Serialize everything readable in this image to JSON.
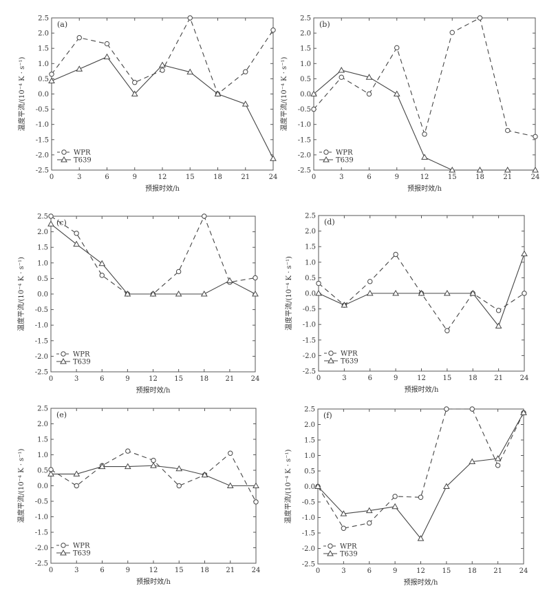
{
  "figure": {
    "background": "#ffffff",
    "line_color": "#444444"
  },
  "chart_data": [
    {
      "type": "line",
      "panel": "(a)",
      "xlabel": "预报时效/h",
      "ylabel": "温度平流/(10⁻⁴ K · s⁻¹)",
      "x": [
        0,
        3,
        6,
        9,
        12,
        15,
        18,
        21,
        24
      ],
      "xticks": [
        0,
        3,
        6,
        9,
        12,
        15,
        18,
        21,
        24
      ],
      "yticks": [
        2.5,
        2.0,
        1.5,
        1.0,
        0.5,
        0.0,
        -0.5,
        -1.0,
        -1.5,
        -2.0,
        -2.5
      ],
      "ytick_labels": [
        "2.5",
        "2.0",
        "1.5",
        "1.0",
        "0.5",
        "0.0",
        "-0.5",
        "-1.0",
        "-1.5",
        "-2.0",
        "-2.5"
      ],
      "xlim": [
        0,
        24
      ],
      "ylim": [
        -2.5,
        2.5
      ],
      "series": [
        {
          "name": "WPR",
          "marker": "circle",
          "dash": true,
          "values": [
            0.65,
            1.85,
            1.65,
            0.38,
            0.78,
            2.5,
            0.0,
            0.73,
            2.1
          ]
        },
        {
          "name": "T639",
          "marker": "triangle",
          "dash": false,
          "values": [
            0.43,
            0.82,
            1.22,
            0.0,
            0.95,
            0.72,
            0.0,
            -0.33,
            -2.12
          ]
        }
      ]
    },
    {
      "type": "line",
      "panel": "(b)",
      "xlabel": "预报时效/h",
      "ylabel": "温度平流/(10⁻⁴ K · s⁻¹)",
      "x": [
        0,
        3,
        6,
        9,
        12,
        15,
        18,
        21,
        24
      ],
      "xticks": [
        0,
        3,
        6,
        9,
        12,
        15,
        18,
        21,
        24
      ],
      "yticks": [
        2.5,
        2.0,
        1.5,
        1.0,
        0.5,
        0.0,
        -0.5,
        -1.0,
        -1.5,
        -2.0,
        -2.5
      ],
      "ytick_labels": [
        "2.5",
        "2.0",
        "1.5",
        "1.0",
        "0.5",
        "0.0",
        "-0.5",
        "-1.0",
        "-1.5",
        "-2.0",
        "-2.5"
      ],
      "xlim": [
        0,
        24
      ],
      "ylim": [
        -2.5,
        2.5
      ],
      "series": [
        {
          "name": "WPR",
          "marker": "circle",
          "dash": true,
          "values": [
            -0.5,
            0.55,
            0.0,
            1.52,
            -1.32,
            2.02,
            2.5,
            -1.2,
            -1.4
          ]
        },
        {
          "name": "T639",
          "marker": "triangle",
          "dash": false,
          "values": [
            0.0,
            0.78,
            0.55,
            0.0,
            -2.08,
            -2.5,
            -2.5,
            -2.5,
            -2.5
          ]
        }
      ]
    },
    {
      "type": "line",
      "panel": "(c)",
      "xlabel": "预报时效/h",
      "ylabel": "温度平流/(10⁻⁴ K · s⁻¹)",
      "x": [
        0,
        3,
        6,
        9,
        12,
        15,
        18,
        21,
        24
      ],
      "xticks": [
        0,
        3,
        6,
        9,
        12,
        15,
        18,
        21,
        24
      ],
      "yticks": [
        2.5,
        2.0,
        1.5,
        1.0,
        0.5,
        0.0,
        -0.5,
        -1.0,
        -1.5,
        -2.0,
        -2.5
      ],
      "ytick_labels": [
        "2.5",
        "2.0",
        "1.5",
        "1.0",
        "0.5",
        "0.0",
        "-0.5",
        "-1.0",
        "-1.5",
        "-2.0",
        "-2.5"
      ],
      "xlim": [
        0,
        24
      ],
      "ylim": [
        -2.5,
        2.5
      ],
      "series": [
        {
          "name": "WPR",
          "marker": "circle",
          "dash": true,
          "values": [
            2.5,
            1.95,
            0.6,
            0.0,
            0.0,
            0.72,
            2.5,
            0.38,
            0.52
          ]
        },
        {
          "name": "T639",
          "marker": "triangle",
          "dash": false,
          "values": [
            2.25,
            1.6,
            0.98,
            0.0,
            0.0,
            0.0,
            0.0,
            0.43,
            0.0
          ]
        }
      ]
    },
    {
      "type": "line",
      "panel": "(d)",
      "xlabel": "预报时效/h",
      "ylabel": "温度平流/(10⁻⁴ K · s⁻¹)",
      "x": [
        0,
        3,
        6,
        9,
        12,
        15,
        18,
        21,
        24
      ],
      "xticks": [
        0,
        3,
        6,
        9,
        12,
        15,
        18,
        21,
        24
      ],
      "yticks": [
        2.5,
        2.0,
        1.5,
        1.0,
        0.5,
        0.0,
        -0.5,
        -1.0,
        -1.5,
        -2.0,
        -2.5
      ],
      "ytick_labels": [
        "2.5",
        "2.0",
        "1.5",
        "1.0",
        "0.5",
        "0.0",
        "-0.5",
        "-1.0",
        "-1.5",
        "-2.0",
        "-2.5"
      ],
      "xlim": [
        0,
        24
      ],
      "ylim": [
        -2.5,
        2.5
      ],
      "series": [
        {
          "name": "WPR",
          "marker": "circle",
          "dash": true,
          "values": [
            0.32,
            -0.38,
            0.38,
            1.25,
            0.0,
            -1.2,
            0.0,
            -0.55,
            0.0
          ]
        },
        {
          "name": "T639",
          "marker": "triangle",
          "dash": false,
          "values": [
            0.0,
            -0.38,
            0.0,
            0.0,
            0.0,
            0.0,
            0.0,
            -1.05,
            1.27
          ]
        }
      ]
    },
    {
      "type": "line",
      "panel": "(e)",
      "xlabel": "预报时效/h",
      "ylabel": "温度平流/(10⁻⁴ K · s⁻¹)",
      "x": [
        0,
        3,
        6,
        9,
        12,
        15,
        18,
        21,
        24
      ],
      "xticks": [
        0,
        3,
        6,
        9,
        12,
        15,
        18,
        21,
        24
      ],
      "yticks": [
        2.5,
        2.0,
        1.5,
        1.0,
        0.5,
        0.0,
        -0.5,
        -1.0,
        -1.5,
        -2.0,
        -2.5
      ],
      "ytick_labels": [
        "2.5",
        "2.0",
        "1.5",
        "1.0",
        "0.5",
        "0.0",
        "-0.5",
        "-1.0",
        "-1.5",
        "-2.0",
        "-2.5"
      ],
      "xlim": [
        0,
        24
      ],
      "ylim": [
        -2.5,
        2.5
      ],
      "series": [
        {
          "name": "WPR",
          "marker": "circle",
          "dash": true,
          "values": [
            0.52,
            0.0,
            0.65,
            1.12,
            0.82,
            0.0,
            0.35,
            1.05,
            -0.52
          ]
        },
        {
          "name": "T639",
          "marker": "triangle",
          "dash": false,
          "values": [
            0.38,
            0.38,
            0.62,
            0.62,
            0.65,
            0.55,
            0.35,
            0.0,
            0.0
          ]
        }
      ]
    },
    {
      "type": "line",
      "panel": "(f)",
      "xlabel": "预报时效/h",
      "ylabel": "温度平流/(10⁻⁴ K · s⁻¹)",
      "x": [
        0,
        3,
        6,
        9,
        12,
        15,
        18,
        21,
        24
      ],
      "xticks": [
        0,
        3,
        6,
        9,
        12,
        15,
        18,
        21,
        24
      ],
      "yticks": [
        2.5,
        2.0,
        1.5,
        1.0,
        0.5,
        0.0,
        -0.5,
        -1.0,
        -1.5,
        -2.0,
        -2.5
      ],
      "ytick_labels": [
        "2.5",
        "2.0",
        "1.5",
        "1.0",
        "0.5",
        "0.0",
        "-0.5",
        "-1.0",
        "-1.5",
        "-2.0",
        "-2.5"
      ],
      "xlim": [
        0,
        24
      ],
      "ylim": [
        -2.5,
        2.5
      ],
      "series": [
        {
          "name": "WPR",
          "marker": "circle",
          "dash": true,
          "values": [
            0.0,
            -1.35,
            -1.18,
            -0.32,
            -0.35,
            2.5,
            2.5,
            0.68,
            2.38
          ]
        },
        {
          "name": "T639",
          "marker": "triangle",
          "dash": false,
          "values": [
            0.0,
            -0.88,
            -0.78,
            -0.65,
            -1.68,
            0.0,
            0.8,
            0.9,
            2.38
          ]
        }
      ]
    }
  ]
}
